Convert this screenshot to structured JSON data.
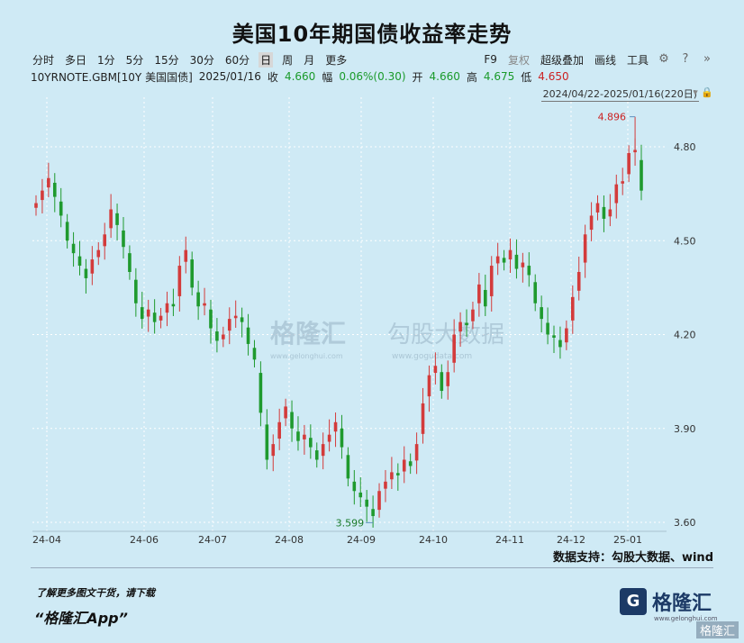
{
  "title": "美国10年期国债收益率走势",
  "toolbar": {
    "periods": [
      "分时",
      "多日",
      "1分",
      "5分",
      "15分",
      "30分",
      "60分",
      "日",
      "周",
      "月",
      "更多"
    ],
    "active": "日",
    "tools": [
      "F9",
      "复权",
      "超级叠加",
      "画线",
      "工具"
    ]
  },
  "quote": {
    "symbol": "10YRNOTE.GBM[10Y 美国国债]",
    "date": "2025/01/16",
    "close_label": "收",
    "close": "4.660",
    "change_label": "幅",
    "change": "0.06%(0.30)",
    "open_label": "开",
    "open": "4.660",
    "high_label": "高",
    "high": "4.675",
    "low_label": "低",
    "low": "4.650"
  },
  "range": "2024/04/22-2025/01/16(220日)",
  "watermark": {
    "brand": "格隆汇",
    "url": "www.gelonghui.com",
    "data": "勾股大数据",
    "data_url": "www.gogudata.com"
  },
  "source": "数据支持：勾股大数据、wind",
  "promo": {
    "line1": "了解更多图文干货，请下载",
    "line2": "“格隆汇App”"
  },
  "logo": {
    "text": "格隆汇",
    "sub": "www.gelonghui.com",
    "corner": "格隆汇"
  },
  "colors": {
    "up": "#d33b3b",
    "down": "#1f9a2e",
    "background": "#cfeaf5",
    "grid": "#ffffff"
  },
  "chart_data": {
    "type": "candlestick",
    "x_ticks": [
      "24-04",
      "24-06",
      "24-07",
      "24-08",
      "24-09",
      "24-10",
      "24-11",
      "24-12",
      "25-01"
    ],
    "y_ticks": [
      3.6,
      3.9,
      4.2,
      4.5,
      4.8
    ],
    "ylim": [
      3.6,
      4.8
    ],
    "annotations": [
      {
        "label": "4.896",
        "value": 4.896,
        "type": "max"
      },
      {
        "label": "3.599",
        "value": 3.599,
        "type": "min"
      }
    ],
    "series": [
      {
        "x": "24-04",
        "close": 4.62
      },
      {
        "x": "24-04",
        "close": 4.66
      },
      {
        "x": "24-04",
        "close": 4.7
      },
      {
        "x": "24-04",
        "close": 4.64
      },
      {
        "x": "24-05",
        "close": 4.58
      },
      {
        "x": "24-05",
        "close": 4.5
      },
      {
        "x": "24-05",
        "close": 4.46
      },
      {
        "x": "24-05",
        "close": 4.42
      },
      {
        "x": "24-05",
        "close": 4.38
      },
      {
        "x": "24-05",
        "close": 4.44
      },
      {
        "x": "24-05",
        "close": 4.47
      },
      {
        "x": "24-05",
        "close": 4.52
      },
      {
        "x": "24-05",
        "close": 4.6
      },
      {
        "x": "24-06",
        "close": 4.55
      },
      {
        "x": "24-06",
        "close": 4.48
      },
      {
        "x": "24-06",
        "close": 4.4
      },
      {
        "x": "24-06",
        "close": 4.3
      },
      {
        "x": "24-06",
        "close": 4.25
      },
      {
        "x": "24-06",
        "close": 4.28
      },
      {
        "x": "24-06",
        "close": 4.24
      },
      {
        "x": "24-06",
        "close": 4.26
      },
      {
        "x": "24-06",
        "close": 4.3
      },
      {
        "x": "24-06",
        "close": 4.29
      },
      {
        "x": "24-07",
        "close": 4.42
      },
      {
        "x": "24-07",
        "close": 4.47
      },
      {
        "x": "24-07",
        "close": 4.35
      },
      {
        "x": "24-07",
        "close": 4.29
      },
      {
        "x": "24-07",
        "close": 4.3
      },
      {
        "x": "24-07",
        "close": 4.22
      },
      {
        "x": "24-07",
        "close": 4.18
      },
      {
        "x": "24-07",
        "close": 4.2
      },
      {
        "x": "24-07",
        "close": 4.25
      },
      {
        "x": "24-07",
        "close": 4.26
      },
      {
        "x": "24-07",
        "close": 4.24
      },
      {
        "x": "24-07",
        "close": 4.17
      },
      {
        "x": "24-08",
        "close": 4.12
      },
      {
        "x": "24-08",
        "close": 3.95
      },
      {
        "x": "24-08",
        "close": 3.8
      },
      {
        "x": "24-08",
        "close": 3.85
      },
      {
        "x": "24-08",
        "close": 3.92
      },
      {
        "x": "24-08",
        "close": 3.97
      },
      {
        "x": "24-08",
        "close": 3.9
      },
      {
        "x": "24-08",
        "close": 3.86
      },
      {
        "x": "24-08",
        "close": 3.88
      },
      {
        "x": "24-08",
        "close": 3.84
      },
      {
        "x": "24-08",
        "close": 3.8
      },
      {
        "x": "24-08",
        "close": 3.85
      },
      {
        "x": "24-08",
        "close": 3.88
      },
      {
        "x": "24-08",
        "close": 3.92
      },
      {
        "x": "24-09",
        "close": 3.84
      },
      {
        "x": "24-09",
        "close": 3.74
      },
      {
        "x": "24-09",
        "close": 3.7
      },
      {
        "x": "24-09",
        "close": 3.68
      },
      {
        "x": "24-09",
        "close": 3.65
      },
      {
        "x": "24-09",
        "close": 3.62
      },
      {
        "x": "24-09",
        "close": 3.7
      },
      {
        "x": "24-09",
        "close": 3.73
      },
      {
        "x": "24-09",
        "close": 3.76
      },
      {
        "x": "24-09",
        "close": 3.75
      },
      {
        "x": "24-09",
        "close": 3.8
      },
      {
        "x": "24-10",
        "close": 3.78
      },
      {
        "x": "24-10",
        "close": 3.85
      },
      {
        "x": "24-10",
        "close": 3.98
      },
      {
        "x": "24-10",
        "close": 4.07
      },
      {
        "x": "24-10",
        "close": 4.1
      },
      {
        "x": "24-10",
        "close": 4.02
      },
      {
        "x": "24-10",
        "close": 4.08
      },
      {
        "x": "24-10",
        "close": 4.2
      },
      {
        "x": "24-10",
        "close": 4.24
      },
      {
        "x": "24-10",
        "close": 4.23
      },
      {
        "x": "24-10",
        "close": 4.28
      },
      {
        "x": "24-11",
        "close": 4.36
      },
      {
        "x": "24-11",
        "close": 4.29
      },
      {
        "x": "24-11",
        "close": 4.42
      },
      {
        "x": "24-11",
        "close": 4.45
      },
      {
        "x": "24-11",
        "close": 4.43
      },
      {
        "x": "24-11",
        "close": 4.47
      },
      {
        "x": "24-11",
        "close": 4.41
      },
      {
        "x": "24-11",
        "close": 4.43
      },
      {
        "x": "24-11",
        "close": 4.39
      },
      {
        "x": "24-11",
        "close": 4.3
      },
      {
        "x": "24-11",
        "close": 4.25
      },
      {
        "x": "24-12",
        "close": 4.2
      },
      {
        "x": "24-12",
        "close": 4.19
      },
      {
        "x": "24-12",
        "close": 4.16
      },
      {
        "x": "24-12",
        "close": 4.22
      },
      {
        "x": "24-12",
        "close": 4.32
      },
      {
        "x": "24-12",
        "close": 4.4
      },
      {
        "x": "24-12",
        "close": 4.52
      },
      {
        "x": "24-12",
        "close": 4.58
      },
      {
        "x": "24-12",
        "close": 4.62
      },
      {
        "x": "24-12",
        "close": 4.57
      },
      {
        "x": "25-01",
        "close": 4.6
      },
      {
        "x": "25-01",
        "close": 4.68
      },
      {
        "x": "25-01",
        "close": 4.69
      },
      {
        "x": "25-01",
        "close": 4.78
      },
      {
        "x": "25-01",
        "close": 4.79
      },
      {
        "x": "25-01",
        "close": 4.66
      }
    ]
  }
}
